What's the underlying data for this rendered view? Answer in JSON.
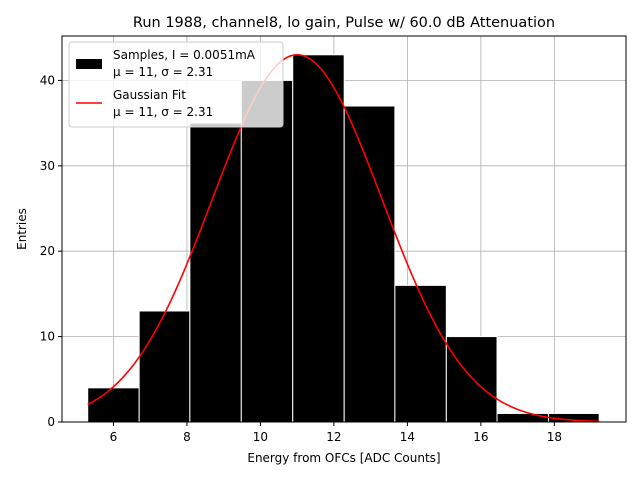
{
  "chart_data": {
    "type": "bar",
    "title": "Run 1988, channel8, lo gain, Pulse w/ 60.0 dB Attenuation",
    "xlabel": "Energy from OFCs [ADC Counts]",
    "ylabel": "Entries",
    "xlim": [
      4.6,
      19.95
    ],
    "ylim": [
      0,
      45.2
    ],
    "grid": true,
    "xticks": [
      6,
      8,
      10,
      12,
      14,
      16,
      18
    ],
    "yticks": [
      0,
      10,
      20,
      30,
      40
    ],
    "histogram": {
      "name": "Samples, I = 0.0051mA",
      "bin_edges": [
        5.3,
        6.7,
        8.08,
        9.48,
        10.88,
        12.28,
        13.66,
        15.06,
        16.44,
        17.84,
        19.22
      ],
      "counts": [
        4,
        13,
        35,
        40,
        43,
        37,
        16,
        10,
        1,
        1
      ],
      "color": "#000000",
      "edgecolor": "#ffffff"
    },
    "fit": {
      "name": "Gaussian Fit",
      "mu": 11,
      "sigma": 2.31,
      "amplitude": 43,
      "x_range": [
        5.3,
        19.22
      ],
      "color": "#ff0000"
    },
    "legend": {
      "location": "top-left",
      "entries": [
        {
          "line1": "Samples, I = 0.0051mA",
          "line2": "μ = 11, σ = 2.31"
        },
        {
          "line1": "Gaussian Fit",
          "line2": "μ = 11, σ = 2.31"
        }
      ]
    }
  }
}
